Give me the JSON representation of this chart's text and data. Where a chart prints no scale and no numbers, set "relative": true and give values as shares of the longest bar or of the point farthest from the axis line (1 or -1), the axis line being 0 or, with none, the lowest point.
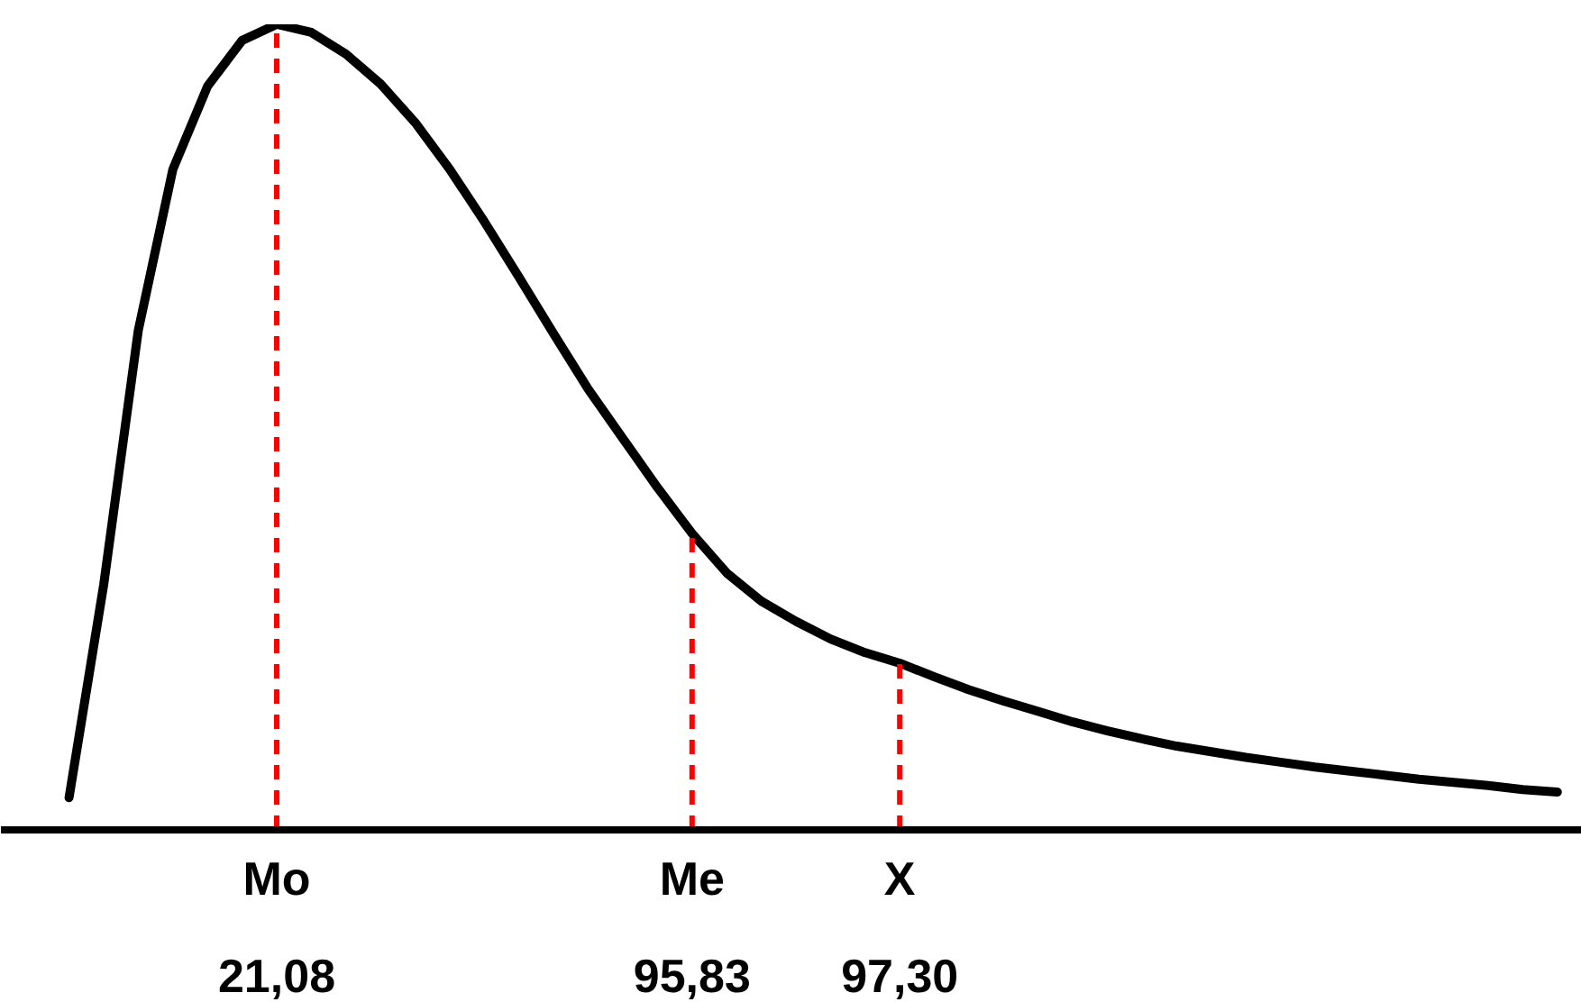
{
  "chart_data": {
    "type": "line",
    "relative": true,
    "marker": "none",
    "line_style": "solid",
    "categories": [
      null,
      null,
      null,
      null,
      null,
      null,
      "Mo",
      null,
      null,
      null,
      null,
      null,
      null,
      null,
      null,
      null,
      null,
      null,
      "Me",
      null,
      null,
      null,
      null,
      null,
      "X",
      null,
      null,
      null,
      null,
      null,
      null,
      null,
      null,
      null,
      null,
      null,
      null,
      null,
      null,
      null,
      null,
      null,
      null,
      null
    ],
    "series": [
      {
        "color": "#000000",
        "values": [
          0.04,
          0.304,
          0.62,
          0.82,
          0.923,
          0.98,
          1,
          0.99,
          0.963,
          0.926,
          0.878,
          0.82,
          0.755,
          0.686,
          0.616,
          0.547,
          0.486,
          0.425,
          0.368,
          0.319,
          0.284,
          0.259,
          0.237,
          0.22,
          0.207,
          0.19,
          0.174,
          0.16,
          0.147,
          0.134,
          0.123,
          0.113,
          0.104,
          0.097,
          0.09,
          0.084,
          0.078,
          0.073,
          0.068,
          0.063,
          0.059,
          0.055,
          0.05,
          0.047
        ]
      }
    ],
    "ref_lines": [
      {
        "axis": "x",
        "value": "Mo",
        "color": "#ff0000",
        "line_style": "dashed"
      },
      {
        "axis": "x",
        "value": "Me",
        "color": "#ff0000",
        "line_style": "dashed"
      },
      {
        "axis": "x",
        "value": "X",
        "color": "#ff0000",
        "line_style": "dashed"
      }
    ],
    "annotations": [
      "21,08",
      "95,83",
      "97,30"
    ]
  }
}
